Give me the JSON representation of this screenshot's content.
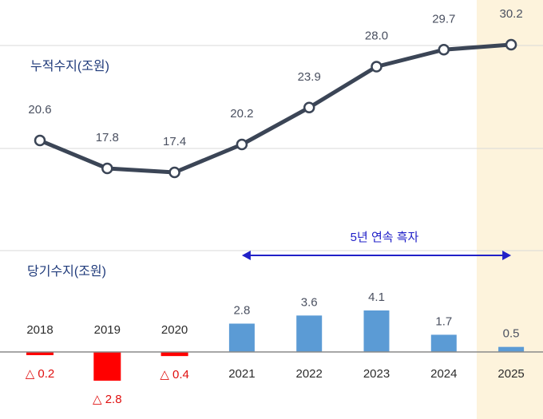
{
  "colors": {
    "cumulative_line": "#3b4556",
    "positive_bar": "#5b9bd5",
    "negative_bar": "#ff0000",
    "negative_text": "#e01010",
    "highlight": "#fdf3dc",
    "annotation": "#2020c8",
    "section_label": "#1f3a7a",
    "gridline": "#d9d9d9"
  },
  "chart_data": [
    {
      "type": "line",
      "ylabel": "누적수지(조원)",
      "x": [
        "2018",
        "2019",
        "2020",
        "2021",
        "2022",
        "2023",
        "2024",
        "2025"
      ],
      "values": [
        20.6,
        17.8,
        17.4,
        20.2,
        23.9,
        28.0,
        29.7,
        30.2
      ],
      "value_labels": [
        "20.6",
        "17.8",
        "17.4",
        "20.2",
        "23.9",
        "28.0",
        "29.7",
        "30.2"
      ],
      "highlight_category": "2025",
      "grid": true
    },
    {
      "type": "bar",
      "ylabel": "당기수지(조원)",
      "categories": [
        "2018",
        "2019",
        "2020",
        "2021",
        "2022",
        "2023",
        "2024",
        "2025"
      ],
      "values": [
        -0.2,
        -2.8,
        -0.4,
        2.8,
        3.6,
        4.1,
        1.7,
        0.5
      ],
      "value_labels": [
        "△ 0.2",
        "△ 2.8",
        "△ 0.4",
        "2.8",
        "3.6",
        "4.1",
        "1.7",
        "0.5"
      ],
      "annotation": {
        "text": "5년 연속 흑자",
        "from": "2021",
        "to": "2025"
      }
    }
  ]
}
